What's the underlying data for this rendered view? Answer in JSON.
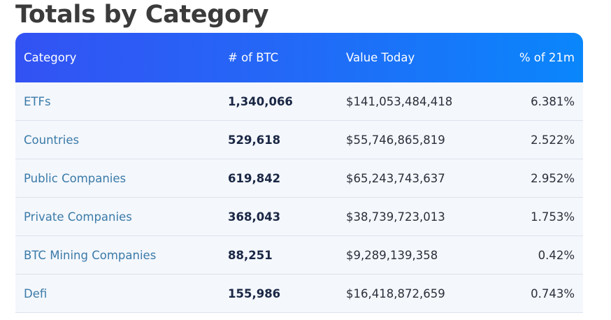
{
  "title": "Totals by Category",
  "table": {
    "headers": {
      "category": "Category",
      "btc": "# of BTC",
      "value": "Value Today",
      "pct": "% of 21m"
    },
    "rows": [
      {
        "category": "ETFs",
        "btc": "1,340,066",
        "value": "$141,053,484,418",
        "pct": "6.381%"
      },
      {
        "category": "Countries",
        "btc": "529,618",
        "value": "$55,746,865,819",
        "pct": "2.522%"
      },
      {
        "category": "Public Companies",
        "btc": "619,842",
        "value": "$65,243,743,637",
        "pct": "2.952%"
      },
      {
        "category": "Private Companies",
        "btc": "368,043",
        "value": "$38,739,723,013",
        "pct": "1.753%"
      },
      {
        "category": "BTC Mining Companies",
        "btc": "88,251",
        "value": "$9,289,139,358",
        "pct": "0.42%"
      },
      {
        "category": "Defi",
        "btc": "155,986",
        "value": "$16,418,872,659",
        "pct": "0.743%"
      }
    ]
  },
  "colors": {
    "header_gradient_start": "#3352f3",
    "header_gradient_end": "#0a86fb",
    "row_background": "#f4f7fc",
    "link_text": "#3a7aa8",
    "title_text": "#3b3b3b"
  }
}
